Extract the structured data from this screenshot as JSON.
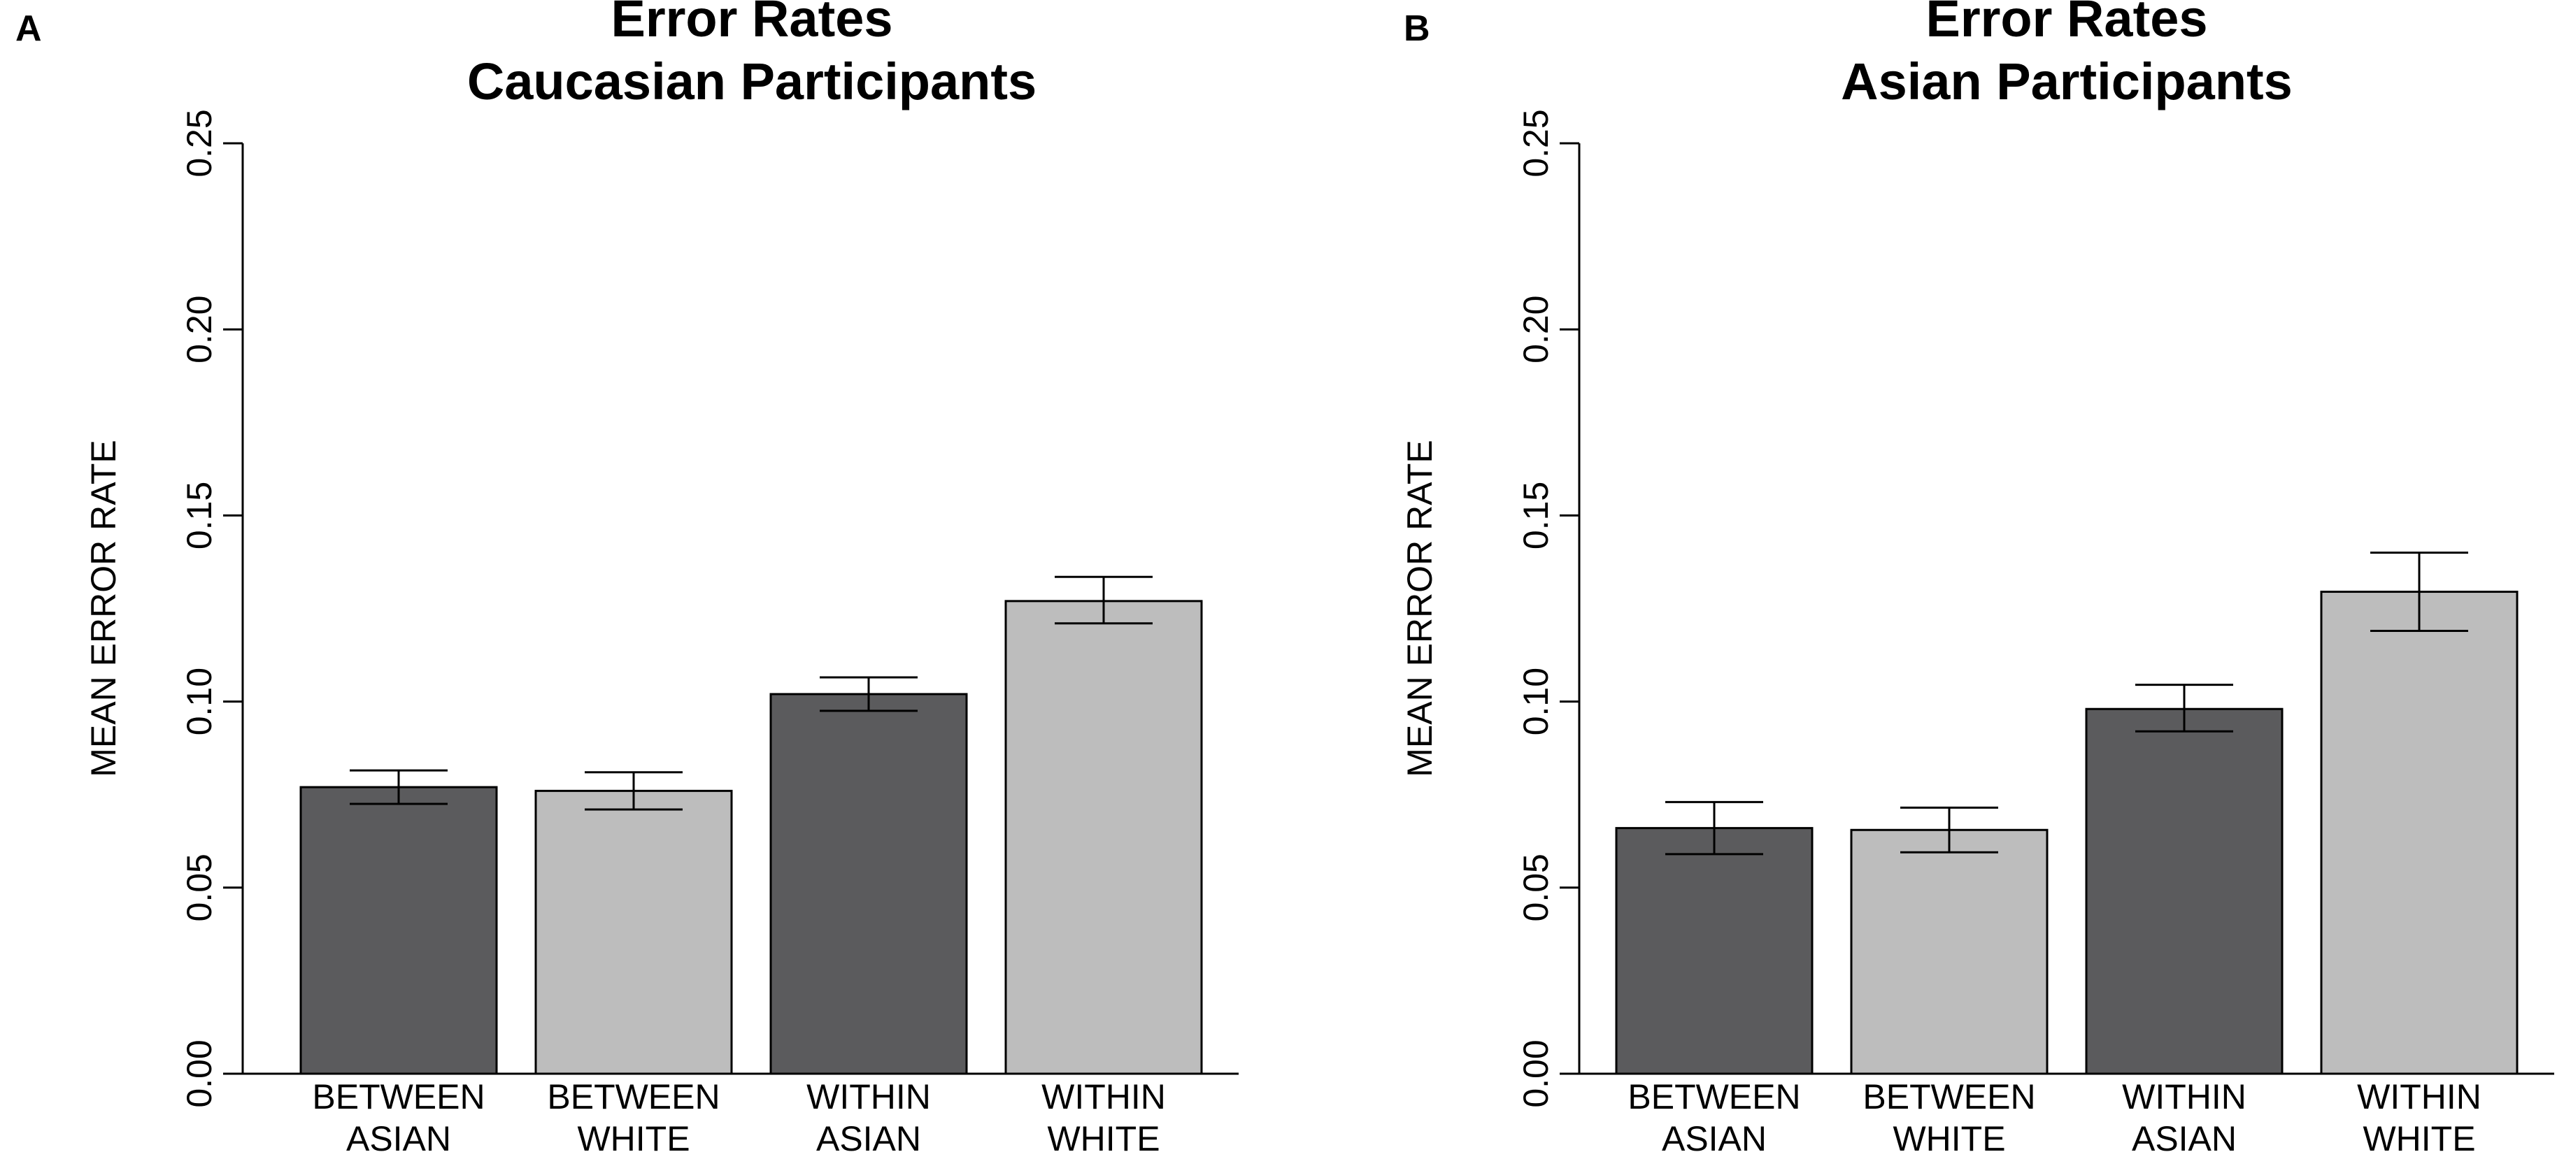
{
  "colors": {
    "dark_bar": "#5b5b5d",
    "light_bar": "#bdbdbd",
    "axis": "#000000"
  },
  "chart_data": [
    {
      "type": "bar",
      "panel": "A",
      "title": "Error Rates",
      "subtitle": "Caucasian Participants",
      "ylabel": "MEAN ERROR RATE",
      "xlabel": "",
      "ylim": [
        0,
        0.25
      ],
      "yticks": [
        "0.00",
        "0.05",
        "0.10",
        "0.15",
        "0.20",
        "0.25"
      ],
      "categories": [
        [
          "BETWEEN",
          "ASIAN"
        ],
        [
          "BETWEEN",
          "WHITE"
        ],
        [
          "WITHIN",
          "ASIAN"
        ],
        [
          "WITHIN",
          "WHITE"
        ]
      ],
      "values": [
        0.077,
        0.076,
        0.102,
        0.127
      ],
      "error_low": [
        0.0725,
        0.071,
        0.0975,
        0.121
      ],
      "error_high": [
        0.0815,
        0.081,
        0.1065,
        0.1335
      ],
      "bar_colors": [
        "dark",
        "light",
        "dark",
        "light"
      ]
    },
    {
      "type": "bar",
      "panel": "B",
      "title": "Error Rates",
      "subtitle": "Asian Participants",
      "ylabel": "MEAN ERROR RATE",
      "xlabel": "",
      "ylim": [
        0,
        0.25
      ],
      "yticks": [
        "0.00",
        "0.05",
        "0.10",
        "0.15",
        "0.20",
        "0.25"
      ],
      "categories": [
        [
          "BETWEEN",
          "ASIAN"
        ],
        [
          "BETWEEN",
          "WHITE"
        ],
        [
          "WITHIN",
          "ASIAN"
        ],
        [
          "WITHIN",
          "WHITE"
        ]
      ],
      "values": [
        0.066,
        0.0655,
        0.098,
        0.1295
      ],
      "error_low": [
        0.059,
        0.0595,
        0.092,
        0.119
      ],
      "error_high": [
        0.073,
        0.0715,
        0.1045,
        0.14
      ],
      "bar_colors": [
        "dark",
        "light",
        "dark",
        "light"
      ]
    }
  ]
}
